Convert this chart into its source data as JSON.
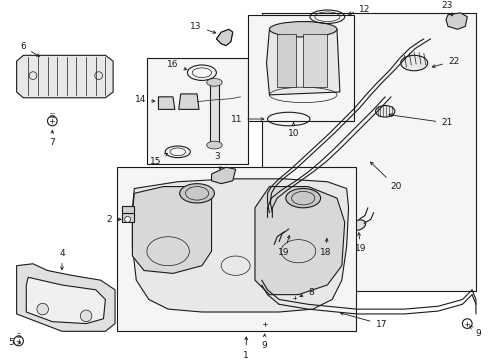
{
  "background": "#ffffff",
  "line_color": "#1a1a1a",
  "fig_w": 4.89,
  "fig_h": 3.6,
  "dpi": 100
}
